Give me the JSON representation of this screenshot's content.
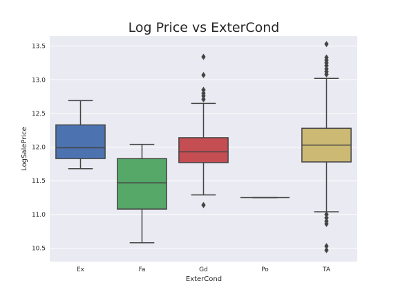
{
  "chart_data": {
    "type": "box",
    "title": "Log Price vs ExterCond",
    "xlabel": "ExterCond",
    "ylabel": "LogSalePrice",
    "ylim": [
      10.3,
      13.65
    ],
    "yticks": [
      "10.5",
      "11.0",
      "11.5",
      "12.0",
      "12.5",
      "13.0",
      "13.5"
    ],
    "grid": true,
    "categories": [
      "Ex",
      "Fa",
      "Gd",
      "Po",
      "TA"
    ],
    "boxes": [
      {
        "category": "Ex",
        "whisker_low": 11.68,
        "q1": 11.83,
        "median": 11.99,
        "q3": 12.33,
        "whisker_high": 12.69,
        "outliers": [],
        "color": "#4c72b0"
      },
      {
        "category": "Fa",
        "whisker_low": 10.58,
        "q1": 11.08,
        "median": 11.47,
        "q3": 11.83,
        "whisker_high": 12.04,
        "outliers": [],
        "color": "#55a868"
      },
      {
        "category": "Gd",
        "whisker_low": 11.29,
        "q1": 11.77,
        "median": 11.93,
        "q3": 12.14,
        "whisker_high": 12.65,
        "outliers": [
          11.14,
          12.71,
          12.76,
          12.8,
          12.85,
          13.07,
          13.34
        ],
        "color": "#c44e52"
      },
      {
        "category": "Po",
        "whisker_low": 11.25,
        "q1": 11.25,
        "median": 11.25,
        "q3": 11.25,
        "whisker_high": 11.25,
        "outliers": [],
        "color": "#8172b2"
      },
      {
        "category": "TA",
        "whisker_low": 11.04,
        "q1": 11.78,
        "median": 12.03,
        "q3": 12.28,
        "whisker_high": 13.02,
        "outliers": [
          10.47,
          10.53,
          10.86,
          10.9,
          10.95,
          11.0,
          13.08,
          13.12,
          13.16,
          13.21,
          13.25,
          13.29,
          13.33,
          13.53
        ],
        "color": "#ccb974"
      }
    ]
  }
}
